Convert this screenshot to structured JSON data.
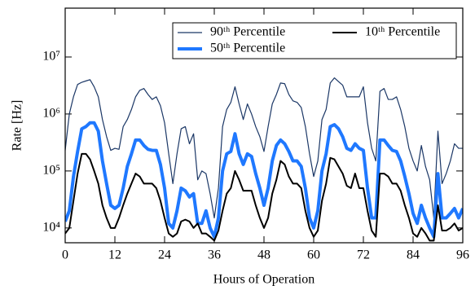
{
  "chart_data": {
    "type": "line",
    "xlabel": "Hours of Operation",
    "ylabel": "Rate [Hz]",
    "x": [
      0,
      1,
      2,
      3,
      4,
      5,
      6,
      7,
      8,
      9,
      10,
      11,
      12,
      13,
      14,
      15,
      16,
      17,
      18,
      19,
      20,
      21,
      22,
      23,
      24,
      25,
      26,
      27,
      28,
      29,
      30,
      31,
      32,
      33,
      34,
      35,
      36,
      37,
      38,
      39,
      40,
      41,
      42,
      43,
      44,
      45,
      46,
      47,
      48,
      49,
      50,
      51,
      52,
      53,
      54,
      55,
      56,
      57,
      58,
      59,
      60,
      61,
      62,
      63,
      64,
      65,
      66,
      67,
      68,
      69,
      70,
      71,
      72,
      73,
      74,
      75,
      76,
      77,
      78,
      79,
      80,
      81,
      82,
      83,
      84,
      85,
      86,
      87,
      88,
      89,
      90,
      91,
      92,
      93,
      94,
      95,
      96
    ],
    "series": [
      {
        "name": "90ᵗʰ Percentile",
        "color": "#1b3766",
        "width": 1.2,
        "values": [
          230000,
          1000000,
          2000000,
          3300000,
          3600000,
          3800000,
          4000000,
          3000000,
          2000000,
          800000,
          400000,
          230000,
          250000,
          240000,
          600000,
          800000,
          1200000,
          2000000,
          2600000,
          2800000,
          2200000,
          1800000,
          2000000,
          1400000,
          700000,
          200000,
          60000,
          200000,
          550000,
          600000,
          300000,
          450000,
          70000,
          100000,
          90000,
          40000,
          15000,
          50000,
          600000,
          1200000,
          1600000,
          3000000,
          1500000,
          800000,
          1500000,
          1000000,
          600000,
          400000,
          220000,
          600000,
          1500000,
          2200000,
          3500000,
          3400000,
          2200000,
          1700000,
          1600000,
          1300000,
          600000,
          200000,
          80000,
          150000,
          800000,
          1200000,
          3500000,
          4300000,
          3700000,
          3200000,
          2000000,
          2000000,
          2000000,
          2000000,
          3000000,
          700000,
          250000,
          150000,
          2500000,
          2800000,
          1800000,
          1800000,
          2000000,
          1200000,
          600000,
          250000,
          150000,
          100000,
          280000,
          120000,
          70000,
          15000,
          500000,
          60000,
          90000,
          150000,
          300000,
          250000,
          250000
        ]
      },
      {
        "name": "50ᵗʰ Percentile",
        "color": "#1f78ff",
        "width": 4,
        "values": [
          13000,
          20000,
          80000,
          220000,
          550000,
          600000,
          700000,
          700000,
          500000,
          150000,
          60000,
          25000,
          22000,
          25000,
          50000,
          120000,
          200000,
          350000,
          350000,
          280000,
          240000,
          230000,
          230000,
          130000,
          50000,
          12000,
          10000,
          20000,
          50000,
          45000,
          35000,
          40000,
          12000,
          12000,
          20000,
          10000,
          7000,
          15000,
          100000,
          200000,
          220000,
          450000,
          200000,
          130000,
          200000,
          180000,
          90000,
          50000,
          25000,
          50000,
          150000,
          280000,
          350000,
          300000,
          220000,
          150000,
          150000,
          120000,
          50000,
          15000,
          10000,
          20000,
          100000,
          200000,
          600000,
          650000,
          550000,
          400000,
          250000,
          230000,
          300000,
          250000,
          230000,
          50000,
          15000,
          15000,
          350000,
          350000,
          280000,
          230000,
          220000,
          150000,
          80000,
          40000,
          18000,
          12000,
          25000,
          15000,
          10000,
          7000,
          90000,
          15000,
          15000,
          18000,
          22000,
          15000,
          22000
        ]
      },
      {
        "name": "10ᵗʰ Percentile",
        "color": "#000000",
        "width": 2,
        "values": [
          8000,
          10000,
          30000,
          90000,
          200000,
          200000,
          160000,
          100000,
          60000,
          25000,
          15000,
          10000,
          10000,
          15000,
          25000,
          40000,
          60000,
          90000,
          80000,
          60000,
          60000,
          60000,
          50000,
          30000,
          15000,
          8000,
          7000,
          8000,
          13000,
          14000,
          13000,
          10000,
          12000,
          8000,
          8000,
          7000,
          6000,
          9000,
          20000,
          40000,
          50000,
          100000,
          70000,
          45000,
          45000,
          45000,
          25000,
          15000,
          10000,
          15000,
          40000,
          70000,
          150000,
          130000,
          80000,
          60000,
          60000,
          50000,
          20000,
          10000,
          7000,
          9000,
          30000,
          60000,
          170000,
          160000,
          120000,
          90000,
          55000,
          50000,
          90000,
          50000,
          50000,
          20000,
          9000,
          7000,
          90000,
          90000,
          80000,
          60000,
          60000,
          45000,
          25000,
          15000,
          8000,
          7000,
          10000,
          8000,
          6000,
          6000,
          25000,
          9000,
          9000,
          10000,
          12000,
          9000,
          10000
        ]
      }
    ],
    "xlim": [
      0,
      96
    ],
    "xticks": [
      0,
      12,
      24,
      36,
      48,
      60,
      72,
      84,
      96
    ],
    "ylim": [
      5500,
      72000000
    ],
    "ylog": true,
    "yticks": [
      {
        "value": 10000,
        "label": "10⁴"
      },
      {
        "value": 100000,
        "label": "10⁵"
      },
      {
        "value": 1000000,
        "label": "10⁶"
      },
      {
        "value": 10000000,
        "label": "10⁷"
      }
    ],
    "legend": "upper right"
  }
}
